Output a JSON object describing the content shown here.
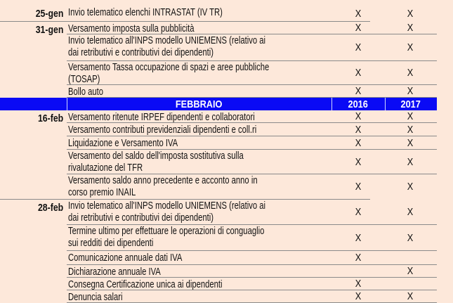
{
  "header": {
    "month": "FEBBRAIO",
    "year1": "2016",
    "year2": "2017",
    "color": "#0a0af5"
  },
  "rows_before": [
    {
      "date": "25-gen",
      "lines": [
        "Invio telematico elenchi INTRASTAT (IV TR)"
      ],
      "y2016": "X",
      "y2017": "X"
    },
    {
      "date": "31-gen",
      "lines": [
        "Versamento imposta sulla pubblicità"
      ],
      "y2016": "X",
      "y2017": "X"
    },
    {
      "date": "",
      "lines": [
        "Invio telematico all'INPS modello UNIEMENS (relativo ai",
        "dai retributivi e contributivi dei dipendenti)"
      ],
      "y2016": "X",
      "y2017": "X"
    },
    {
      "date": "",
      "lines": [
        "Versamento Tassa occupazione di spazi e aree pubbliche",
        "(TOSAP)"
      ],
      "y2016": "X",
      "y2017": "X"
    },
    {
      "date": "",
      "lines": [
        "Bollo auto"
      ],
      "y2016": "X",
      "y2017": "X"
    }
  ],
  "rows_after": [
    {
      "date": "16-feb",
      "lines": [
        "Versamento ritenute IRPEF dipendenti e collaboratori"
      ],
      "y2016": "X",
      "y2017": "X"
    },
    {
      "date": "",
      "lines": [
        "Versamento contributi previdenziali dipendenti e coll.ri"
      ],
      "y2016": "X",
      "y2017": "X"
    },
    {
      "date": "",
      "lines": [
        "Liquidazione e Versamento IVA"
      ],
      "y2016": "X",
      "y2017": "X"
    },
    {
      "date": "",
      "lines": [
        "Versamento del saldo dell'imposta sostitutiva sulla",
        "rivalutazione del TFR"
      ],
      "y2016": "X",
      "y2017": "X"
    },
    {
      "date": "",
      "lines": [
        "Versamento saldo anno precedente e acconto anno in",
        "corso premio INAIL"
      ],
      "y2016": "X",
      "y2017": "X"
    },
    {
      "date": "28-feb",
      "lines": [
        "Invio telematico all'INPS modello UNIEMENS (relativo ai",
        "dai retributivi e contributivi dei dipendenti)"
      ],
      "y2016": "X",
      "y2017": "X"
    },
    {
      "date": "",
      "lines": [
        "Termine ultimo per effettuare le operazioni di conguaglio",
        "sui redditi dei dipendenti"
      ],
      "y2016": "X",
      "y2017": "X"
    },
    {
      "date": "",
      "lines": [
        "Comunicazione annuale dati IVA"
      ],
      "y2016": "X",
      "y2017": ""
    },
    {
      "date": "",
      "lines": [
        "Dichiarazione annuale IVA"
      ],
      "y2016": "",
      "y2017": "X"
    },
    {
      "date": "",
      "lines": [
        "Consegna Certificazione unica ai dipendenti"
      ],
      "y2016": "X",
      "y2017": ""
    },
    {
      "date": "",
      "lines": [
        "Denuncia salari"
      ],
      "y2016": "X",
      "y2017": "X"
    }
  ]
}
